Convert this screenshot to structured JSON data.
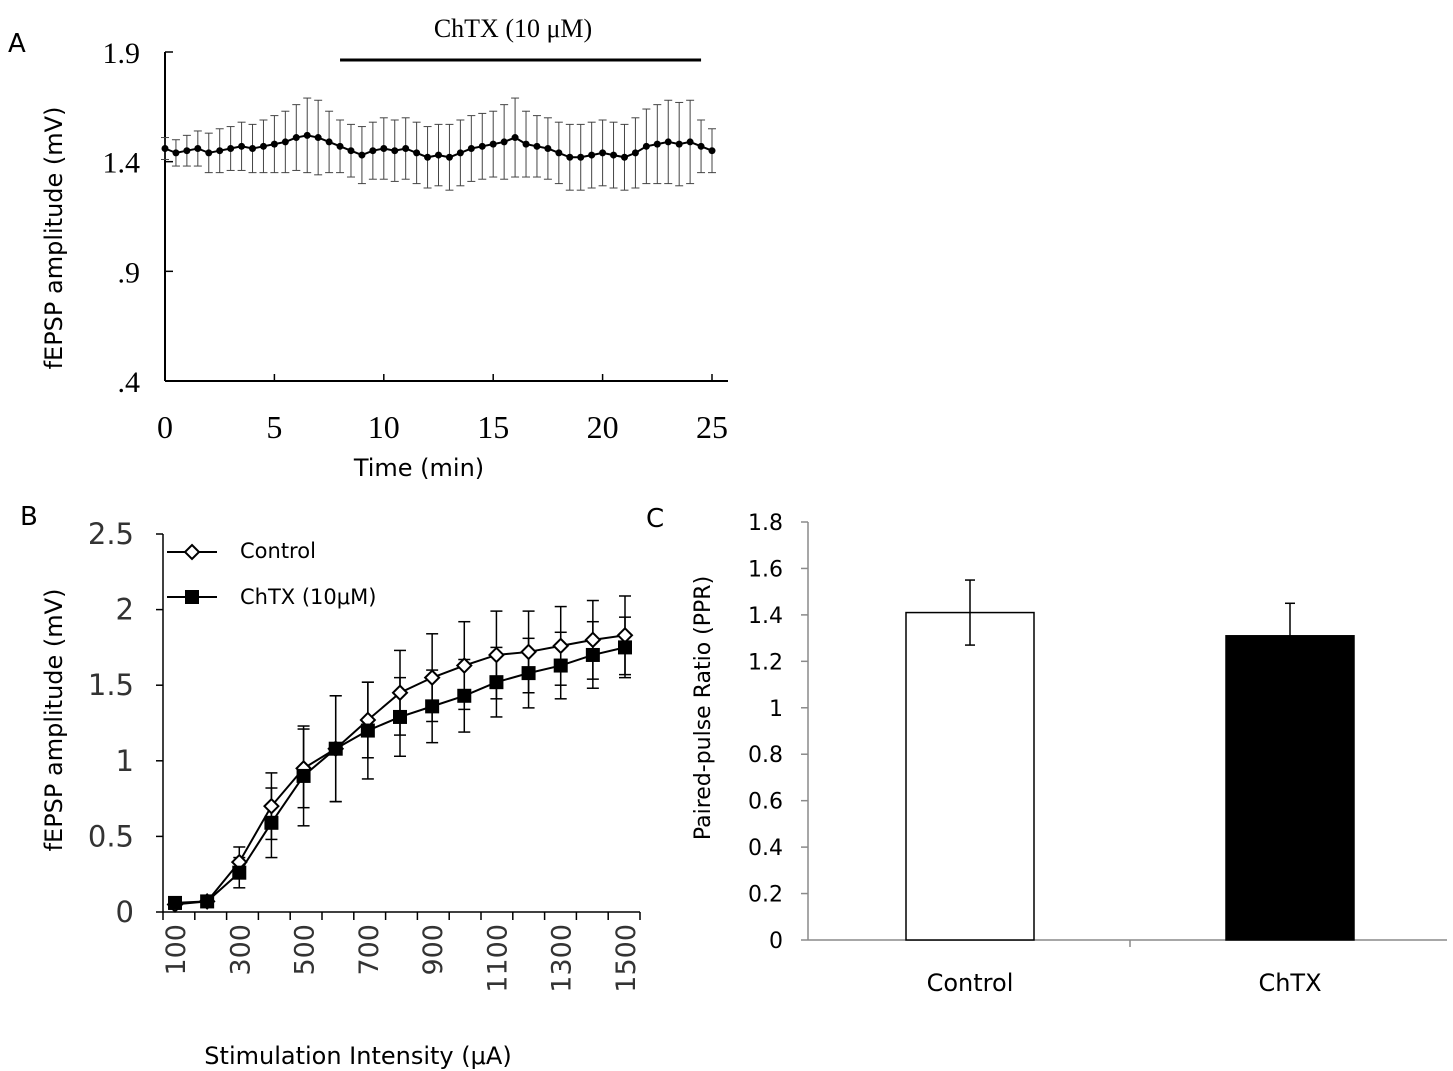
{
  "chart_data": [
    {
      "panel": "A",
      "type": "line",
      "xlabel": "Time (min)",
      "ylabel": "fEPSP amplitude (mV)",
      "xlim": [
        0,
        25
      ],
      "ylim": [
        0.4,
        1.9
      ],
      "xticks": [
        "0",
        "5",
        "10",
        "15",
        "20",
        "25"
      ],
      "yticks": [
        ".4",
        ".9",
        "1.4",
        "1.9"
      ],
      "annotation": {
        "label": "ChTX (10 μM)",
        "x_range": [
          8,
          24.5
        ]
      },
      "x": [
        0,
        0.5,
        1,
        1.5,
        2,
        2.5,
        3,
        3.5,
        4,
        4.5,
        5,
        5.5,
        6,
        6.5,
        7,
        7.5,
        8,
        8.5,
        9,
        9.5,
        10,
        10.5,
        11,
        11.5,
        12,
        12.5,
        13,
        13.5,
        14,
        14.5,
        15,
        15.5,
        16,
        16.5,
        17,
        17.5,
        18,
        18.5,
        19,
        19.5,
        20,
        20.5,
        21,
        21.5,
        22,
        22.5,
        23,
        23.5,
        24,
        24.5,
        25
      ],
      "values": [
        1.46,
        1.44,
        1.45,
        1.46,
        1.44,
        1.45,
        1.46,
        1.47,
        1.46,
        1.47,
        1.48,
        1.49,
        1.51,
        1.52,
        1.51,
        1.49,
        1.47,
        1.45,
        1.43,
        1.45,
        1.46,
        1.45,
        1.46,
        1.44,
        1.42,
        1.43,
        1.42,
        1.44,
        1.46,
        1.47,
        1.48,
        1.49,
        1.51,
        1.48,
        1.47,
        1.46,
        1.44,
        1.42,
        1.42,
        1.43,
        1.44,
        1.43,
        1.42,
        1.44,
        1.47,
        1.48,
        1.49,
        1.48,
        1.49,
        1.47,
        1.45
      ],
      "error": [
        0.05,
        0.06,
        0.07,
        0.08,
        0.09,
        0.1,
        0.1,
        0.11,
        0.11,
        0.12,
        0.13,
        0.14,
        0.15,
        0.17,
        0.17,
        0.14,
        0.12,
        0.12,
        0.13,
        0.13,
        0.14,
        0.14,
        0.14,
        0.14,
        0.14,
        0.14,
        0.15,
        0.15,
        0.15,
        0.15,
        0.15,
        0.17,
        0.18,
        0.15,
        0.14,
        0.14,
        0.14,
        0.15,
        0.15,
        0.15,
        0.15,
        0.15,
        0.15,
        0.16,
        0.17,
        0.18,
        0.19,
        0.19,
        0.19,
        0.12,
        0.1
      ]
    },
    {
      "panel": "B",
      "type": "line",
      "xlabel": "Stimulation Intensity (μA)",
      "ylabel": "fEPSP amplitude (mV)",
      "ylim": [
        0,
        2.5
      ],
      "yticks": [
        "0",
        "0.5",
        "1",
        "1.5",
        "2",
        "2.5"
      ],
      "categories": [
        "100",
        "200",
        "300",
        "400",
        "500",
        "600",
        "700",
        "800",
        "900",
        "1000",
        "1100",
        "1200",
        "1300",
        "1400",
        "1500"
      ],
      "tick_labels": [
        "100",
        "300",
        "500",
        "700",
        "900",
        "1100",
        "1300",
        "1500"
      ],
      "series": [
        {
          "name": "Control",
          "marker": "open-diamond",
          "values": [
            0.05,
            0.07,
            0.33,
            0.7,
            0.95,
            1.08,
            1.27,
            1.45,
            1.55,
            1.63,
            1.7,
            1.72,
            1.76,
            1.8,
            1.83
          ],
          "error": [
            0.03,
            0.03,
            0.1,
            0.22,
            0.26,
            0.35,
            0.25,
            0.28,
            0.29,
            0.29,
            0.29,
            0.27,
            0.26,
            0.26,
            0.26
          ]
        },
        {
          "name": "ChTX (10μM)",
          "marker": "filled-square",
          "values": [
            0.06,
            0.07,
            0.26,
            0.59,
            0.9,
            1.08,
            1.2,
            1.29,
            1.36,
            1.43,
            1.52,
            1.58,
            1.63,
            1.7,
            1.75
          ],
          "error": [
            0.03,
            0.03,
            0.1,
            0.23,
            0.33,
            0.35,
            0.32,
            0.26,
            0.24,
            0.24,
            0.23,
            0.23,
            0.22,
            0.22,
            0.2
          ]
        }
      ]
    },
    {
      "panel": "C",
      "type": "bar",
      "ylabel": "Paired-pulse Ratio (PPR)",
      "ylim": [
        0,
        1.8
      ],
      "yticks": [
        "0",
        "0.2",
        "0.4",
        "0.6",
        "0.8",
        "1",
        "1.2",
        "1.4",
        "1.6",
        "1.8"
      ],
      "categories": [
        "Control",
        "ChTX"
      ],
      "values": [
        1.41,
        1.31
      ],
      "error": [
        0.14,
        0.14
      ],
      "colors": [
        "#ffffff",
        "#000000"
      ]
    }
  ],
  "panel_labels": {
    "a": "A",
    "b": "B",
    "c": "C"
  }
}
